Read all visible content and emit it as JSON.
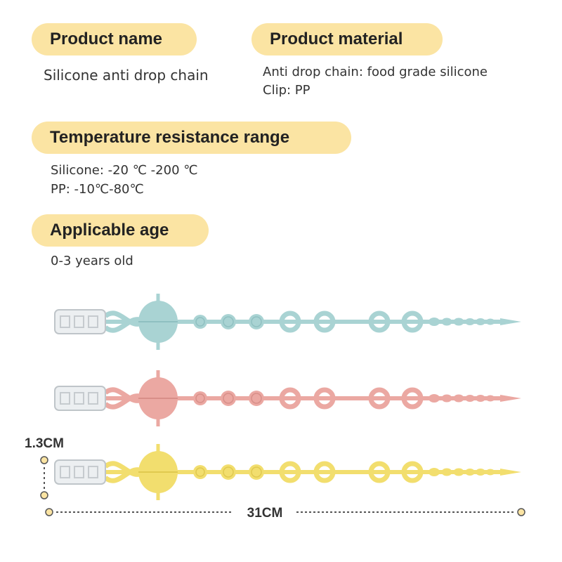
{
  "sections": [
    {
      "title": "Product name",
      "lines": [
        "Silicone anti drop chain"
      ]
    },
    {
      "title": "Product material",
      "lines": [
        "Anti drop chain: food grade silicone",
        "Clip: PP"
      ]
    },
    {
      "title": "Temperature resistance range",
      "lines": [
        "Silicone: -20 ℃ -200 ℃",
        "PP: -10℃-80℃"
      ]
    },
    {
      "title": "Applicable age",
      "lines": [
        "0-3 years old"
      ]
    }
  ],
  "dimensions": {
    "height": "1.3CM",
    "length": "31CM"
  }
}
